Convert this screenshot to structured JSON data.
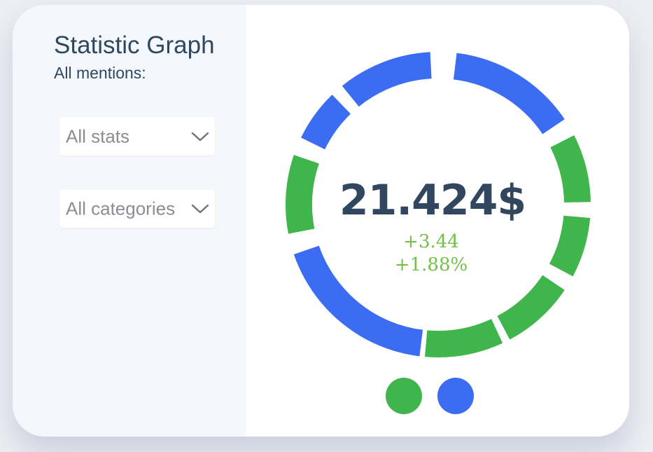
{
  "sidebar": {
    "title": "Statistic Graph",
    "subtitle": "All mentions:",
    "filters": [
      {
        "label": "All stats",
        "icon": "chevron-down-icon"
      },
      {
        "label": "All categories",
        "icon": "chevron-down-icon"
      }
    ]
  },
  "summary": {
    "value": "21.424$",
    "deltas": [
      "+3.44",
      "+1.88%"
    ]
  },
  "colors": {
    "blue": "#3b6cf2",
    "green": "#3fb54c",
    "text_dark": "#30475f",
    "delta_green": "#72c04a"
  },
  "chart_data": {
    "type": "pie",
    "style": "donut",
    "segments": [
      {
        "start_deg": 7,
        "end_deg": 56,
        "color": "blue"
      },
      {
        "start_deg": 63,
        "end_deg": 89,
        "color": "green"
      },
      {
        "start_deg": 95,
        "end_deg": 118,
        "color": "green"
      },
      {
        "start_deg": 124,
        "end_deg": 152,
        "color": "green"
      },
      {
        "start_deg": 155,
        "end_deg": 185,
        "color": "green"
      },
      {
        "start_deg": 187,
        "end_deg": 251,
        "color": "blue"
      },
      {
        "start_deg": 259,
        "end_deg": 289,
        "color": "green"
      },
      {
        "start_deg": 296,
        "end_deg": 316,
        "color": "blue"
      },
      {
        "start_deg": 321,
        "end_deg": 357,
        "color": "blue"
      }
    ]
  },
  "legend": [
    {
      "color": "green"
    },
    {
      "color": "blue"
    }
  ]
}
